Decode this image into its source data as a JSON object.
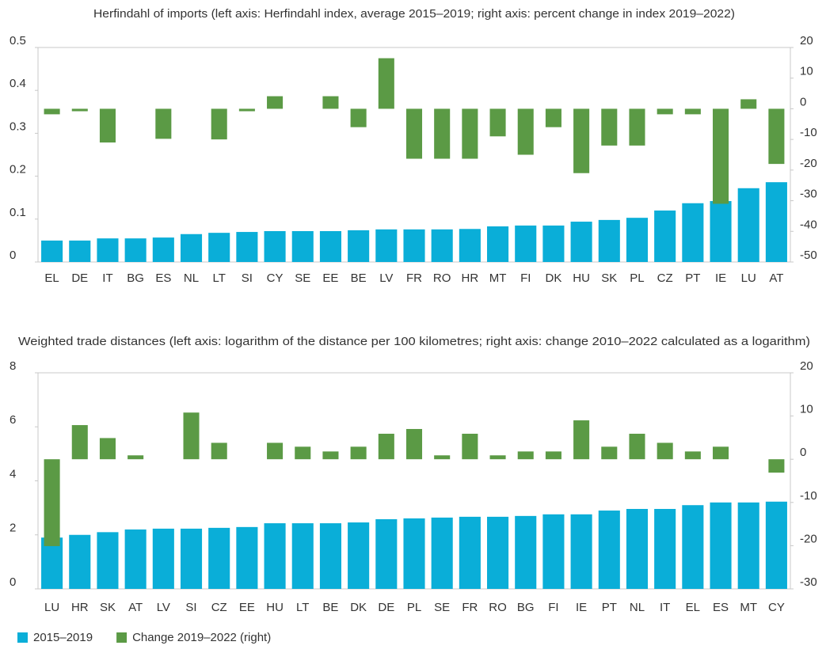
{
  "chart_data": [
    {
      "type": "bar",
      "title": "Herfindahl of imports (left axis: Herfindahl index, average 2015–2019; right axis: percent change in index 2019–2022)",
      "categories": [
        "EL",
        "DE",
        "IT",
        "BG",
        "ES",
        "NL",
        "LT",
        "SI",
        "CY",
        "SE",
        "EE",
        "BE",
        "LV",
        "FR",
        "RO",
        "HR",
        "MT",
        "FI",
        "DK",
        "HU",
        "SK",
        "PL",
        "CZ",
        "PT",
        "IE",
        "LU",
        "AT"
      ],
      "series": [
        {
          "name": "2015–2019",
          "color": "#0aaed8",
          "values": [
            0.05,
            0.05,
            0.055,
            0.055,
            0.057,
            0.065,
            0.068,
            0.07,
            0.072,
            0.072,
            0.072,
            0.074,
            0.076,
            0.076,
            0.076,
            0.077,
            0.083,
            0.085,
            0.085,
            0.094,
            0.098,
            0.103,
            0.12,
            0.137,
            0.142,
            0.172,
            0.186
          ]
        },
        {
          "name": "Change 2019–2022 (right)",
          "color": "#5b9a45",
          "axis": "y2",
          "values": [
            -1.8,
            -0.8,
            -11,
            null,
            -9.8,
            null,
            -10,
            -0.8,
            4.1,
            null,
            4.1,
            -6,
            16.5,
            -16.3,
            -16.3,
            -16.3,
            -9,
            -15,
            -6,
            -21,
            -12,
            -12,
            -1.8,
            -1.8,
            -31,
            3.1,
            -18
          ]
        }
      ],
      "ylim": [
        0,
        0.5
      ],
      "yticks": [
        0,
        0.1,
        0.2,
        0.3,
        0.4,
        0.5
      ],
      "y2lim": [
        -50,
        20
      ],
      "y2ticks": [
        20,
        10,
        0,
        -10,
        -20,
        -30,
        -40,
        -50
      ]
    },
    {
      "type": "bar",
      "title": "Weighted trade distances (left axis: logarithm of the distance per 100 kilometres; right axis: change 2010–2022 calculated as a logarithm)",
      "categories": [
        "LU",
        "HR",
        "SK",
        "AT",
        "LV",
        "SI",
        "CZ",
        "EE",
        "HU",
        "LT",
        "BE",
        "DK",
        "DE",
        "PL",
        "SE",
        "FR",
        "RO",
        "BG",
        "FI",
        "IE",
        "PT",
        "NL",
        "IT",
        "EL",
        "ES",
        "MT",
        "CY"
      ],
      "series": [
        {
          "color": "#0aaed8",
          "values": [
            1.9,
            2.0,
            2.1,
            2.2,
            2.23,
            2.23,
            2.26,
            2.29,
            2.43,
            2.43,
            2.43,
            2.46,
            2.58,
            2.61,
            2.64,
            2.67,
            2.67,
            2.7,
            2.76,
            2.76,
            2.9,
            2.96,
            2.96,
            3.1,
            3.2,
            3.2,
            3.23
          ]
        },
        {
          "color": "#5b9a45",
          "axis": "y2",
          "values": [
            -20.1,
            7.9,
            4.9,
            0.9,
            null,
            10.8,
            3.8,
            null,
            3.8,
            2.9,
            1.8,
            2.9,
            5.9,
            7.0,
            0.9,
            5.9,
            0.9,
            1.8,
            1.8,
            9.0,
            2.9,
            5.9,
            3.8,
            1.8,
            2.9,
            null,
            -3.1
          ]
        }
      ],
      "ylim": [
        0,
        8
      ],
      "yticks": [
        0,
        2,
        4,
        6,
        8
      ],
      "y2lim": [
        -30,
        20
      ],
      "y2ticks": [
        20,
        10,
        0,
        -10,
        -20,
        -30
      ]
    }
  ]
}
